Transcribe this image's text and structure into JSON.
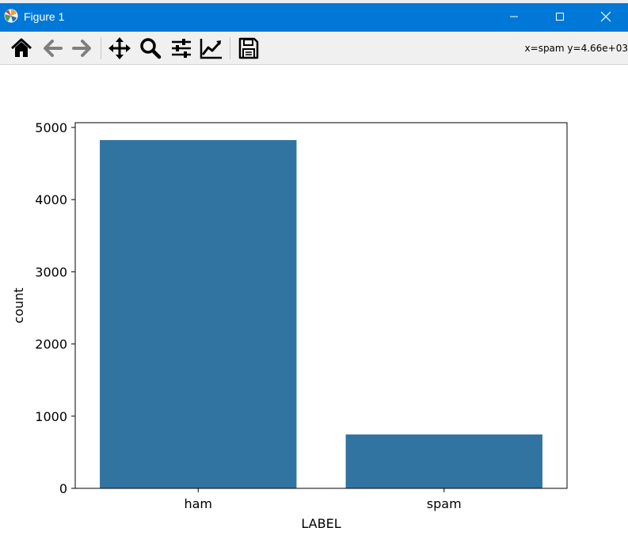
{
  "window": {
    "title": "Figure 1",
    "controls": [
      "minimize",
      "maximize",
      "close"
    ]
  },
  "toolbar": {
    "tools": [
      {
        "name": "home-icon"
      },
      {
        "name": "back-arrow-icon"
      },
      {
        "name": "forward-arrow-icon"
      },
      {
        "name": "pan-icon"
      },
      {
        "name": "zoom-icon"
      },
      {
        "name": "configure-subplots-icon"
      },
      {
        "name": "edit-axis-icon"
      },
      {
        "name": "save-icon"
      }
    ],
    "coordinates": "x=spam y=4.66e+03"
  },
  "colors": {
    "titlebar": "#0078d7",
    "bar": "#3274a1"
  },
  "chart_data": {
    "type": "bar",
    "categories": [
      "ham",
      "spam"
    ],
    "values": [
      4825,
      747
    ],
    "title": "",
    "xlabel": "LABEL",
    "ylabel": "count",
    "ylim": [
      0,
      5066
    ],
    "yticks": [
      0,
      1000,
      2000,
      3000,
      4000,
      5000
    ],
    "ytick_labels": [
      "0",
      "1000",
      "2000",
      "3000",
      "4000",
      "5000"
    ],
    "grid": false,
    "legend": "none"
  }
}
